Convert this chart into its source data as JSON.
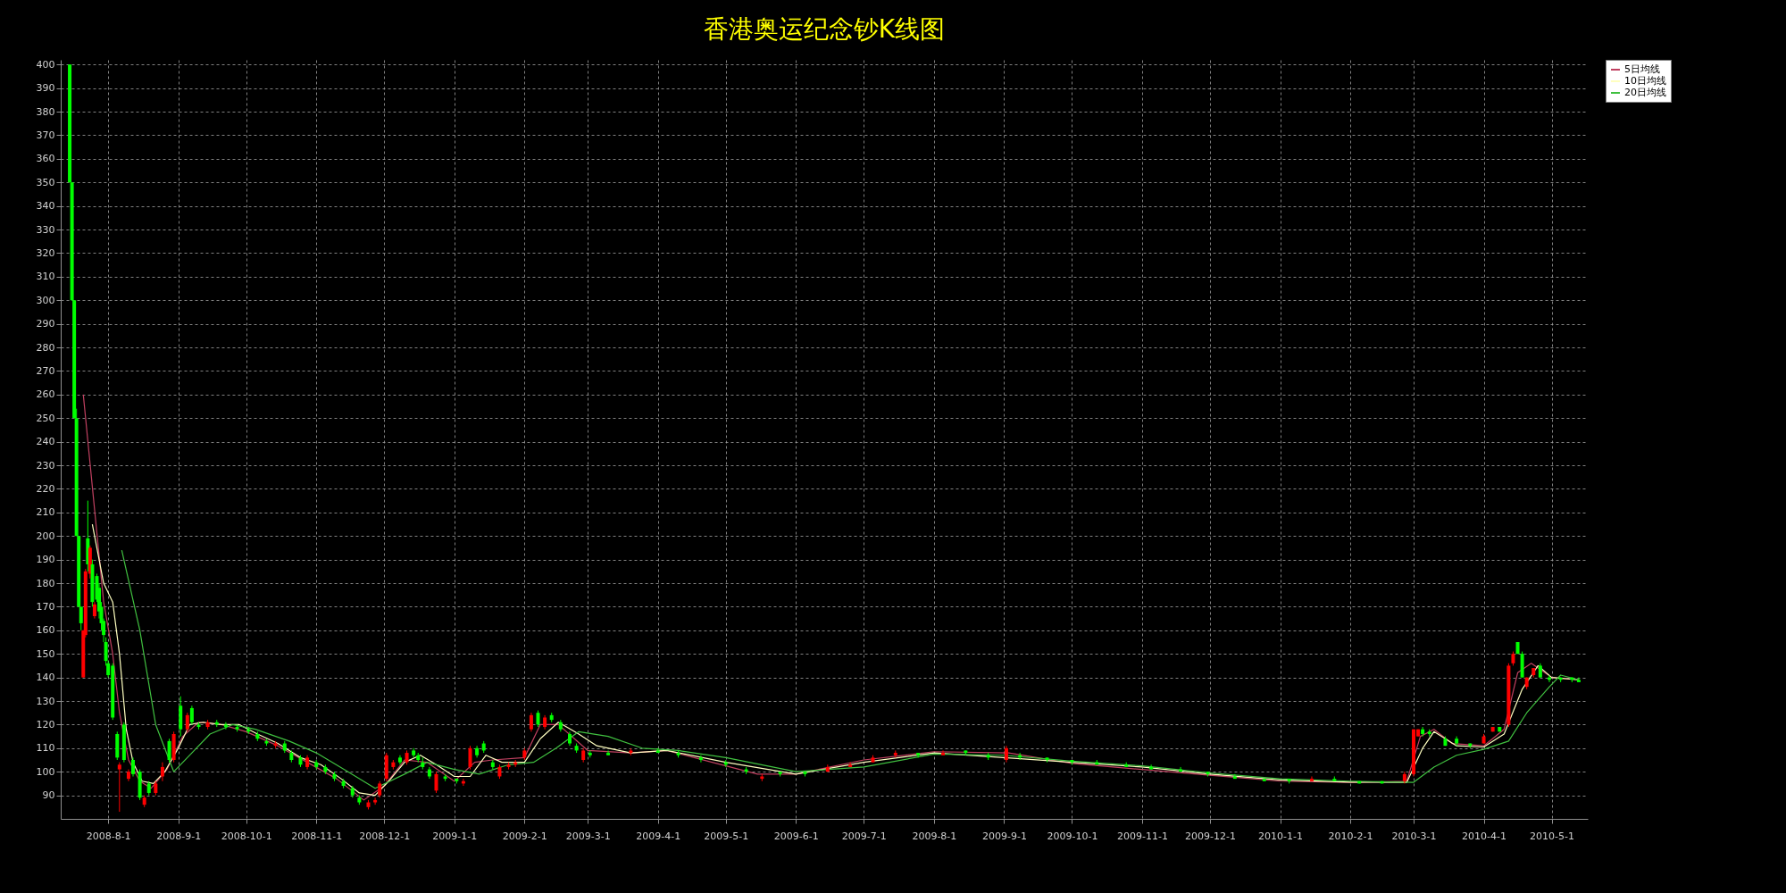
{
  "chart_data": {
    "type": "candlestick",
    "title": "香港奥运纪念钞K线图",
    "x": [
      "2008-07-15",
      "2008-07-16",
      "2008-07-17",
      "2008-07-18",
      "2008-07-19",
      "2008-07-20",
      "2008-07-21",
      "2008-07-22",
      "2008-07-23",
      "2008-07-24",
      "2008-07-25",
      "2008-07-26",
      "2008-07-27",
      "2008-07-28",
      "2008-07-29",
      "2008-07-30",
      "2008-07-31",
      "2008-08-01",
      "2008-08-03",
      "2008-08-05",
      "2008-08-06",
      "2008-08-08",
      "2008-08-10",
      "2008-08-12",
      "2008-08-15",
      "2008-08-17",
      "2008-08-19",
      "2008-08-22",
      "2008-08-25",
      "2008-08-28",
      "2008-08-30",
      "2008-09-02",
      "2008-09-05",
      "2008-09-07",
      "2008-09-10",
      "2008-09-14",
      "2008-09-18",
      "2008-09-22",
      "2008-09-27",
      "2008-10-02",
      "2008-10-06",
      "2008-10-10",
      "2008-10-14",
      "2008-10-18",
      "2008-10-21",
      "2008-10-25",
      "2008-10-28",
      "2008-11-01",
      "2008-11-05",
      "2008-11-09",
      "2008-11-13",
      "2008-11-17",
      "2008-11-20",
      "2008-11-24",
      "2008-11-27",
      "2008-11-29",
      "2008-12-02",
      "2008-12-05",
      "2008-12-08",
      "2008-12-11",
      "2008-12-14",
      "2008-12-16",
      "2008-12-18",
      "2008-12-21",
      "2008-12-24",
      "2008-12-28",
      "2009-01-02",
      "2009-01-05",
      "2009-01-08",
      "2009-01-11",
      "2009-01-14",
      "2009-01-18",
      "2009-01-21",
      "2009-01-25",
      "2009-01-28",
      "2009-02-01",
      "2009-02-04",
      "2009-02-07",
      "2009-02-10",
      "2009-02-13",
      "2009-02-17",
      "2009-02-21",
      "2009-02-24",
      "2009-02-27",
      "2009-03-02",
      "2009-03-10",
      "2009-03-20",
      "2009-04-01",
      "2009-04-10",
      "2009-04-20",
      "2009-05-01",
      "2009-05-10",
      "2009-05-17",
      "2009-05-25",
      "2009-06-05",
      "2009-06-15",
      "2009-06-25",
      "2009-07-05",
      "2009-07-15",
      "2009-07-25",
      "2009-08-05",
      "2009-08-15",
      "2009-08-25",
      "2009-09-02",
      "2009-09-08",
      "2009-09-20",
      "2009-10-01",
      "2009-10-12",
      "2009-10-25",
      "2009-11-05",
      "2009-11-18",
      "2009-11-30",
      "2009-12-12",
      "2009-12-25",
      "2010-01-05",
      "2010-01-15",
      "2010-01-25",
      "2010-02-05",
      "2010-02-15",
      "2010-02-25",
      "2010-03-01",
      "2010-03-03",
      "2010-03-05",
      "2010-03-08",
      "2010-03-15",
      "2010-03-20",
      "2010-03-26",
      "2010-04-01",
      "2010-04-05",
      "2010-04-08",
      "2010-04-12",
      "2010-04-14",
      "2010-04-16",
      "2010-04-18",
      "2010-04-20",
      "2010-04-23",
      "2010-04-26",
      "2010-04-30",
      "2010-05-05",
      "2010-05-10",
      "2010-05-13"
    ],
    "ohlc": [
      [
        400,
        400,
        350,
        350
      ],
      [
        350,
        350,
        300,
        300
      ],
      [
        300,
        300,
        250,
        250
      ],
      [
        250,
        254,
        200,
        200
      ],
      [
        200,
        200,
        170,
        170
      ],
      [
        170,
        170,
        160,
        163
      ],
      [
        140,
        160,
        140,
        160
      ],
      [
        158,
        186,
        157,
        185
      ],
      [
        199,
        215,
        185,
        188
      ],
      [
        184,
        196,
        182,
        195
      ],
      [
        188,
        190,
        170,
        172
      ],
      [
        166,
        172,
        165,
        171
      ],
      [
        183,
        184,
        172,
        173
      ],
      [
        178,
        180,
        165,
        168
      ],
      [
        170,
        172,
        160,
        163
      ],
      [
        164,
        165,
        155,
        158
      ],
      [
        155,
        157,
        145,
        147
      ],
      [
        146,
        147,
        140,
        141
      ],
      [
        145,
        146,
        122,
        123
      ],
      [
        116,
        117,
        105,
        106
      ],
      [
        101,
        104,
        83,
        103
      ],
      [
        120,
        121,
        104,
        105
      ],
      [
        97,
        101,
        96,
        100
      ],
      [
        105,
        106,
        98,
        99
      ],
      [
        100,
        101,
        88,
        89
      ],
      [
        86,
        90,
        85,
        89
      ],
      [
        95,
        96,
        90,
        91
      ],
      [
        91,
        96,
        90,
        95
      ],
      [
        98,
        104,
        96,
        102
      ],
      [
        113,
        114,
        104,
        105
      ],
      [
        105,
        117,
        104,
        116
      ],
      [
        128,
        132,
        115,
        118
      ],
      [
        118,
        125,
        117,
        124
      ],
      [
        127,
        128,
        120,
        121
      ],
      [
        120,
        121,
        118,
        119
      ],
      [
        119,
        122,
        118,
        121
      ],
      [
        121,
        122,
        119,
        120
      ],
      [
        120,
        121,
        118,
        119
      ],
      [
        119,
        120,
        117,
        118
      ],
      [
        118,
        119,
        116,
        117
      ],
      [
        116,
        117,
        113,
        114
      ],
      [
        113,
        114,
        111,
        112
      ],
      [
        111,
        113,
        110,
        112
      ],
      [
        112,
        113,
        108,
        109
      ],
      [
        108,
        109,
        104,
        105
      ],
      [
        106,
        107,
        102,
        103
      ],
      [
        102,
        107,
        101,
        106
      ],
      [
        104,
        105,
        101,
        102
      ],
      [
        102,
        103,
        99,
        100
      ],
      [
        99,
        100,
        96,
        97
      ],
      [
        96,
        97,
        93,
        94
      ],
      [
        93,
        94,
        89,
        90
      ],
      [
        89,
        90,
        86,
        87
      ],
      [
        85,
        88,
        84,
        87
      ],
      [
        87,
        89,
        86,
        88
      ],
      [
        90,
        96,
        89,
        95
      ],
      [
        97,
        108,
        96,
        107
      ],
      [
        102,
        105,
        101,
        104
      ],
      [
        106,
        107,
        103,
        104
      ],
      [
        104,
        109,
        103,
        108
      ],
      [
        109,
        110,
        106,
        107
      ],
      [
        107,
        108,
        104,
        105
      ],
      [
        104,
        106,
        101,
        102
      ],
      [
        101,
        102,
        97,
        98
      ],
      [
        92,
        100,
        91,
        99
      ],
      [
        98,
        99,
        96,
        97
      ],
      [
        97,
        97,
        95,
        96
      ],
      [
        95,
        97,
        94,
        96
      ],
      [
        102,
        111,
        101,
        110
      ],
      [
        110,
        111,
        106,
        107
      ],
      [
        112,
        113,
        108,
        109
      ],
      [
        104,
        105,
        101,
        102
      ],
      [
        98,
        103,
        97,
        102
      ],
      [
        102,
        104,
        101,
        103
      ],
      [
        103,
        105,
        102,
        104
      ],
      [
        106,
        110,
        105,
        109
      ],
      [
        118,
        125,
        117,
        124
      ],
      [
        125,
        126,
        119,
        120
      ],
      [
        119,
        124,
        118,
        123
      ],
      [
        124,
        125,
        121,
        122
      ],
      [
        121,
        122,
        117,
        118
      ],
      [
        116,
        117,
        111,
        112
      ],
      [
        111,
        112,
        108,
        109
      ],
      [
        105,
        110,
        104,
        109
      ],
      [
        108,
        109,
        106,
        107
      ],
      [
        108,
        109,
        107,
        107
      ],
      [
        108,
        110,
        107,
        109
      ],
      [
        109,
        110,
        108,
        108
      ],
      [
        108,
        109,
        106,
        107
      ],
      [
        106,
        107,
        104,
        105
      ],
      [
        104,
        105,
        102,
        103
      ],
      [
        101,
        102,
        99,
        100
      ],
      [
        97,
        99,
        96,
        98
      ],
      [
        100,
        100,
        98,
        99
      ],
      [
        100,
        100,
        98,
        99
      ],
      [
        100,
        103,
        100,
        102
      ],
      [
        102,
        104,
        102,
        103
      ],
      [
        104,
        107,
        104,
        106
      ],
      [
        107,
        109,
        106,
        108
      ],
      [
        108,
        108,
        106,
        107
      ],
      [
        107,
        109,
        107,
        108
      ],
      [
        109,
        109,
        107,
        108
      ],
      [
        107,
        108,
        105,
        106
      ],
      [
        105,
        111,
        104,
        110
      ],
      [
        107,
        108,
        105,
        106
      ],
      [
        106,
        106,
        104,
        105
      ],
      [
        105,
        105,
        103,
        104
      ],
      [
        104,
        105,
        103,
        103
      ],
      [
        103,
        104,
        102,
        102
      ],
      [
        102,
        103,
        101,
        101
      ],
      [
        101,
        102,
        100,
        100
      ],
      [
        100,
        100,
        98,
        99
      ],
      [
        98,
        99,
        97,
        97
      ],
      [
        97,
        97,
        96,
        96
      ],
      [
        97,
        97,
        95,
        96
      ],
      [
        96,
        98,
        96,
        97
      ],
      [
        97,
        98,
        96,
        96
      ],
      [
        96,
        96,
        95,
        95
      ],
      [
        96,
        96,
        95,
        95
      ],
      [
        96,
        100,
        95,
        99
      ],
      [
        99,
        118,
        98,
        118
      ],
      [
        115,
        118,
        115,
        118
      ],
      [
        118,
        119,
        115,
        116
      ],
      [
        117,
        118,
        115,
        116
      ],
      [
        114,
        115,
        111,
        111
      ],
      [
        114,
        115,
        111,
        112
      ],
      [
        112,
        112,
        110,
        111
      ],
      [
        112,
        116,
        112,
        115
      ],
      [
        117,
        119,
        117,
        119
      ],
      [
        119,
        119,
        117,
        117
      ],
      [
        120,
        146,
        119,
        145
      ],
      [
        146,
        151,
        145,
        150
      ],
      [
        155,
        155,
        150,
        150
      ],
      [
        150,
        151,
        140,
        140
      ],
      [
        136,
        140,
        135,
        140
      ],
      [
        141,
        144,
        140,
        144
      ],
      [
        145,
        146,
        140,
        140
      ],
      [
        140,
        141,
        138,
        139
      ],
      [
        140,
        140,
        138,
        139
      ],
      [
        140,
        140,
        138,
        139
      ],
      [
        139,
        140,
        138,
        138
      ]
    ],
    "colors": [
      "#00ff00",
      "#00ff00",
      "#00ff00",
      "#00ff00",
      "#00ff00",
      "#00ff00",
      "#ff0000",
      "#ff0000",
      "#00ff00",
      "#ff0000",
      "#00ff00",
      "#ff0000",
      "#00ff00",
      "#00ff00",
      "#00ff00",
      "#00ff00",
      "#00ff00",
      "#00ff00",
      "#00ff00",
      "#00ff00",
      "#ff0000",
      "#00ff00",
      "#ff0000",
      "#00ff00",
      "#00ff00",
      "#ff0000",
      "#00ff00",
      "#ff0000",
      "#ff0000",
      "#00ff00",
      "#ff0000",
      "#00ff00",
      "#ff0000",
      "#00ff00",
      "#00ff00",
      "#ff0000",
      "#00ff00",
      "#00ff00",
      "#00ff00",
      "#00ff00",
      "#00ff00",
      "#00ff00",
      "#ff0000",
      "#00ff00",
      "#00ff00",
      "#00ff00",
      "#ff0000",
      "#00ff00",
      "#00ff00",
      "#00ff00",
      "#00ff00",
      "#00ff00",
      "#00ff00",
      "#ff0000",
      "#ff0000",
      "#ff0000",
      "#ff0000",
      "#ff0000",
      "#00ff00",
      "#ff0000",
      "#00ff00",
      "#00ff00",
      "#00ff00",
      "#00ff00",
      "#ff0000",
      "#00ff00",
      "#00ff00",
      "#ff0000",
      "#ff0000",
      "#00ff00",
      "#00ff00",
      "#00ff00",
      "#ff0000",
      "#ff0000",
      "#ff0000",
      "#ff0000",
      "#ff0000",
      "#00ff00",
      "#ff0000",
      "#00ff00",
      "#00ff00",
      "#00ff00",
      "#00ff00",
      "#ff0000",
      "#00ff00",
      "#00ff00",
      "#ff0000",
      "#00ff00",
      "#00ff00",
      "#00ff00",
      "#00ff00",
      "#00ff00",
      "#ff0000",
      "#00ff00",
      "#00ff00",
      "#ff0000",
      "#ff0000",
      "#ff0000",
      "#ff0000",
      "#00ff00",
      "#ff0000",
      "#00ff00",
      "#00ff00",
      "#ff0000",
      "#00ff00",
      "#00ff00",
      "#00ff00",
      "#00ff00",
      "#00ff00",
      "#00ff00",
      "#00ff00",
      "#00ff00",
      "#00ff00",
      "#00ff00",
      "#00ff00",
      "#ff0000",
      "#00ff00",
      "#00ff00",
      "#00ff00",
      "#ff0000",
      "#ff0000",
      "#ff0000",
      "#00ff00",
      "#00ff00",
      "#00ff00",
      "#00ff00",
      "#00ff00",
      "#ff0000",
      "#ff0000",
      "#00ff00",
      "#ff0000",
      "#ff0000",
      "#00ff00",
      "#00ff00",
      "#ff0000",
      "#ff0000",
      "#00ff00",
      "#00ff00",
      "#00ff00",
      "#00ff00",
      "#00ff00"
    ],
    "series": [
      {
        "name": "5日均线",
        "type": "line",
        "color": "#c04060",
        "x": [
          "2008-07-21",
          "2008-07-30",
          "2008-08-03",
          "2008-08-06",
          "2008-08-10",
          "2008-08-15",
          "2008-08-20",
          "2008-08-27",
          "2008-09-03",
          "2008-09-10",
          "2008-09-20",
          "2008-10-01",
          "2008-10-15",
          "2008-10-28",
          "2008-11-10",
          "2008-11-22",
          "2008-12-01",
          "2008-12-10",
          "2008-12-20",
          "2009-01-01",
          "2009-01-10",
          "2009-01-18",
          "2009-02-01",
          "2009-02-08",
          "2009-02-16",
          "2009-03-01",
          "2009-03-20",
          "2009-04-05",
          "2009-05-15",
          "2009-06-01",
          "2009-07-01",
          "2009-08-01",
          "2009-09-03",
          "2009-10-01",
          "2009-12-01",
          "2010-01-01",
          "2010-02-01",
          "2010-02-26",
          "2010-03-04",
          "2010-03-10",
          "2010-03-18",
          "2010-04-01",
          "2010-04-10",
          "2010-04-16",
          "2010-04-22",
          "2010-05-01",
          "2010-05-13"
        ],
        "values": [
          260,
          172,
          150,
          125,
          105,
          96,
          93,
          101,
          115,
          121,
          120,
          117,
          111,
          104,
          97,
          88,
          94,
          105,
          104,
          96,
          104,
          105,
          106,
          120,
          120,
          109,
          108,
          109,
          99,
          99,
          105,
          108.5,
          108,
          103.5,
          98.5,
          96,
          95.5,
          96,
          115,
          118,
          112,
          111,
          118,
          142,
          146,
          140,
          139
        ]
      },
      {
        "name": "10日均线",
        "type": "line",
        "color": "#ffffc0",
        "x": [
          "2008-07-25",
          "2008-07-30",
          "2008-08-03",
          "2008-08-06",
          "2008-08-09",
          "2008-08-12",
          "2008-08-16",
          "2008-08-21",
          "2008-08-26",
          "2008-09-01",
          "2008-09-06",
          "2008-09-12",
          "2008-09-20",
          "2008-09-28",
          "2008-10-06",
          "2008-10-15",
          "2008-10-25",
          "2008-11-03",
          "2008-11-12",
          "2008-11-20",
          "2008-11-27",
          "2008-12-03",
          "2008-12-10",
          "2008-12-17",
          "2008-12-24",
          "2009-01-01",
          "2009-01-08",
          "2009-01-15",
          "2009-01-22",
          "2009-02-01",
          "2009-02-08",
          "2009-02-16",
          "2009-02-25",
          "2009-03-05",
          "2009-03-20",
          "2009-04-05",
          "2009-05-01",
          "2009-06-01",
          "2009-07-01",
          "2009-08-01",
          "2009-09-01",
          "2009-10-01",
          "2009-11-01",
          "2009-12-01",
          "2010-01-01",
          "2010-02-01",
          "2010-02-26",
          "2010-03-05",
          "2010-03-10",
          "2010-03-20",
          "2010-04-01",
          "2010-04-10",
          "2010-04-18",
          "2010-04-25",
          "2010-05-01",
          "2010-05-13"
        ],
        "values": [
          205,
          180,
          172,
          150,
          118,
          104,
          96,
          95,
          100,
          110,
          120,
          121,
          120,
          120,
          116,
          112,
          106,
          103,
          97,
          91,
          90,
          96,
          104,
          107,
          103,
          98,
          98,
          107,
          104,
          104,
          114,
          121,
          116,
          111,
          108,
          109,
          104,
          99,
          104,
          108,
          106,
          104,
          102,
          99,
          96.5,
          95.6,
          95.5,
          110,
          117,
          111,
          110.5,
          116,
          135,
          145,
          140,
          139
        ]
      },
      {
        "name": "20日均线",
        "type": "line",
        "color": "#40c040",
        "x": [
          "2008-08-07",
          "2008-08-15",
          "2008-08-22",
          "2008-08-30",
          "2008-09-07",
          "2008-09-15",
          "2008-09-25",
          "2008-10-05",
          "2008-10-20",
          "2008-11-01",
          "2008-11-15",
          "2008-11-27",
          "2008-12-10",
          "2008-12-20",
          "2009-01-01",
          "2009-01-12",
          "2009-01-25",
          "2009-02-05",
          "2009-02-15",
          "2009-02-25",
          "2009-03-10",
          "2009-03-25",
          "2009-04-10",
          "2009-05-01",
          "2009-06-01",
          "2009-07-01",
          "2009-08-01",
          "2009-09-01",
          "2009-10-01",
          "2009-11-01",
          "2009-12-01",
          "2010-01-01",
          "2010-02-01",
          "2010-03-01",
          "2010-03-10",
          "2010-03-20",
          "2010-04-01",
          "2010-04-12",
          "2010-04-20",
          "2010-04-30",
          "2010-05-05",
          "2010-05-13"
        ],
        "values": [
          194,
          160,
          120,
          100,
          108,
          116,
          120,
          118,
          113,
          108,
          100,
          93,
          99,
          104,
          101,
          99,
          103,
          104,
          110,
          117,
          115,
          110,
          109,
          106,
          100,
          102,
          107.5,
          107,
          104.5,
          102.5,
          99.5,
          97,
          96,
          95.5,
          102,
          107,
          109.5,
          113,
          125,
          136,
          141,
          139
        ]
      }
    ],
    "xlim": [
      "2008-07-13",
      "2010-05-15"
    ],
    "ylim": [
      80,
      402
    ],
    "xticks": [
      {
        "value": "2008-08-01",
        "label": "2008-8-1"
      },
      {
        "value": "2008-09-01",
        "label": "2008-9-1"
      },
      {
        "value": "2008-10-01",
        "label": "2008-10-1"
      },
      {
        "value": "2008-11-01",
        "label": "2008-11-1"
      },
      {
        "value": "2008-12-01",
        "label": "2008-12-1"
      },
      {
        "value": "2009-01-01",
        "label": "2009-1-1"
      },
      {
        "value": "2009-02-01",
        "label": "2009-2-1"
      },
      {
        "value": "2009-03-01",
        "label": "2009-3-1"
      },
      {
        "value": "2009-04-01",
        "label": "2009-4-1"
      },
      {
        "value": "2009-05-01",
        "label": "2009-5-1"
      },
      {
        "value": "2009-06-01",
        "label": "2009-6-1"
      },
      {
        "value": "2009-07-01",
        "label": "2009-7-1"
      },
      {
        "value": "2009-08-01",
        "label": "2009-8-1"
      },
      {
        "value": "2009-09-01",
        "label": "2009-9-1"
      },
      {
        "value": "2009-10-01",
        "label": "2009-10-1"
      },
      {
        "value": "2009-11-01",
        "label": "2009-11-1"
      },
      {
        "value": "2009-12-01",
        "label": "2009-12-1"
      },
      {
        "value": "2010-01-01",
        "label": "2010-1-1"
      },
      {
        "value": "2010-02-01",
        "label": "2010-2-1"
      },
      {
        "value": "2010-03-01",
        "label": "2010-3-1"
      },
      {
        "value": "2010-04-01",
        "label": "2010-4-1"
      },
      {
        "value": "2010-05-01",
        "label": "2010-5-1"
      }
    ],
    "yticks": [
      90,
      100,
      110,
      120,
      130,
      140,
      150,
      160,
      170,
      180,
      190,
      200,
      210,
      220,
      230,
      240,
      250,
      260,
      270,
      280,
      290,
      300,
      310,
      320,
      330,
      340,
      350,
      360,
      370,
      380,
      390,
      400
    ],
    "grid": true,
    "legend": "top right"
  }
}
